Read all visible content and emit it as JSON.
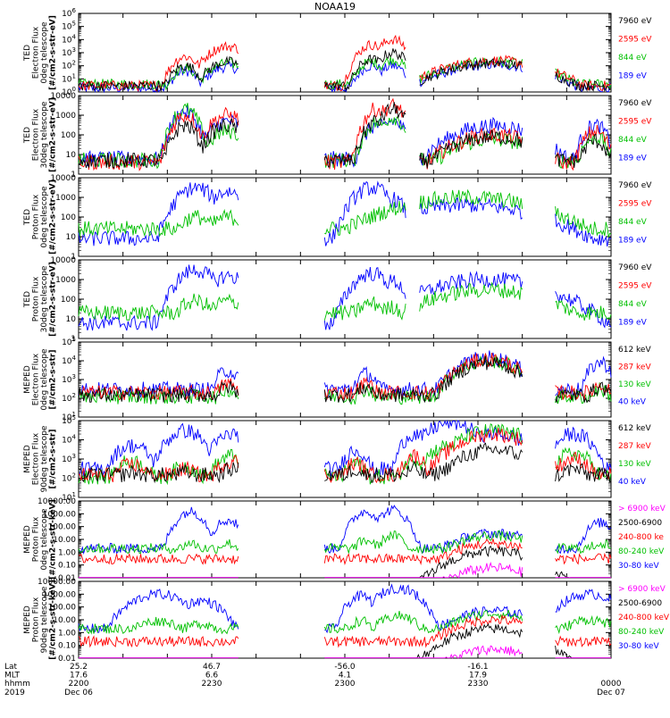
{
  "chart_data": [
    {
      "type": "line",
      "title": "NOAA19",
      "ylabel": [
        "TED",
        "Electron Flux",
        "0deg telescope",
        "[#/cm2-s-str-eV]"
      ],
      "yscale": "log",
      "ylim": [
        1,
        1000000
      ],
      "yticks": [
        "10^0",
        "10^1",
        "10^2",
        "10^3",
        "10^4",
        "10^5",
        "10^6"
      ],
      "legend": [
        {
          "label": "7960 eV",
          "color": "#000000"
        },
        {
          "label": "2595 eV",
          "color": "#ff0000"
        },
        {
          "label": "844 eV",
          "color": "#00c000"
        },
        {
          "label": "189 eV",
          "color": "#0000ff"
        }
      ],
      "peaks": [
        {
          "x": 0.2,
          "w": 0.02,
          "v": [
            100,
            500,
            60,
            40
          ]
        },
        {
          "x": 0.28,
          "w": 0.03,
          "v": [
            200,
            3000,
            150,
            80
          ]
        },
        {
          "x": 0.55,
          "w": 0.02,
          "v": [
            300,
            4000,
            200,
            100
          ]
        },
        {
          "x": 0.59,
          "w": 0.02,
          "v": [
            1000,
            10000,
            300,
            100
          ]
        },
        {
          "x": 0.78,
          "w": 0.08,
          "v": [
            150,
            250,
            200,
            120
          ]
        }
      ],
      "base": [
        3,
        3,
        4,
        2
      ]
    },
    {
      "type": "line",
      "ylabel": [
        "TED",
        "Electron Flux",
        "30deg telescope",
        "[#/cm2-s-str-eV]"
      ],
      "yscale": "log",
      "ylim": [
        1,
        10000
      ],
      "yticks": [
        "1",
        "10",
        "100",
        "1000",
        "10000"
      ],
      "legend": [
        {
          "label": "7960 eV",
          "color": "#000000"
        },
        {
          "label": "2595 eV",
          "color": "#ff0000"
        },
        {
          "label": "844 eV",
          "color": "#00c000"
        },
        {
          "label": "189 eV",
          "color": "#0000ff"
        }
      ],
      "peaks": [
        {
          "x": 0.2,
          "w": 0.02,
          "v": [
            300,
            1000,
            2000,
            1500
          ]
        },
        {
          "x": 0.28,
          "w": 0.03,
          "v": [
            300,
            1000,
            150,
            500
          ]
        },
        {
          "x": 0.56,
          "w": 0.02,
          "v": [
            500,
            2000,
            400,
            300
          ]
        },
        {
          "x": 0.59,
          "w": 0.02,
          "v": [
            2000,
            3000,
            800,
            500
          ]
        },
        {
          "x": 0.78,
          "w": 0.07,
          "v": [
            80,
            100,
            60,
            300
          ]
        },
        {
          "x": 0.97,
          "w": 0.02,
          "v": [
            50,
            150,
            80,
            300
          ]
        }
      ],
      "base": [
        5,
        4,
        5,
        6
      ]
    },
    {
      "type": "line",
      "ylabel": [
        "TED",
        "Proton Flux",
        "0deg telescope",
        "[#/cm2-s-str-eV]"
      ],
      "yscale": "log",
      "ylim": [
        1,
        10000
      ],
      "yticks": [
        "1",
        "10",
        "100",
        "1000",
        "10000"
      ],
      "legend": [
        {
          "label": "7960 eV",
          "color": "#000000"
        },
        {
          "label": "2595 eV",
          "color": "#ff0000"
        },
        {
          "label": "844 eV",
          "color": "#00c000"
        },
        {
          "label": "189 eV",
          "color": "#0000ff"
        }
      ],
      "peaks": [
        {
          "x": 0.22,
          "w": 0.03,
          "v": [
            0,
            0,
            100,
            3000
          ]
        },
        {
          "x": 0.28,
          "w": 0.03,
          "v": [
            0,
            0,
            100,
            2000
          ]
        },
        {
          "x": 0.55,
          "w": 0.03,
          "v": [
            0,
            0,
            80,
            3000
          ]
        },
        {
          "x": 0.59,
          "w": 0.02,
          "v": [
            0,
            0,
            60,
            800
          ]
        },
        {
          "x": 0.73,
          "w": 0.12,
          "v": [
            0,
            0,
            1000,
            400
          ]
        }
      ],
      "base": [
        0,
        0,
        25,
        8
      ]
    },
    {
      "type": "line",
      "ylabel": [
        "TED",
        "Proton Flux",
        "30deg telescope",
        "[#/cm2-s-str-eV]"
      ],
      "yscale": "log",
      "ylim": [
        1,
        10000
      ],
      "yticks": [
        "1",
        "10",
        "100",
        "1000",
        "10000"
      ],
      "legend": [
        {
          "label": "7960 eV",
          "color": "#000000"
        },
        {
          "label": "2595 eV",
          "color": "#ff0000"
        },
        {
          "label": "844 eV",
          "color": "#00c000"
        },
        {
          "label": "189 eV",
          "color": "#0000ff"
        }
      ],
      "peaks": [
        {
          "x": 0.22,
          "w": 0.03,
          "v": [
            0,
            0,
            80,
            3000
          ]
        },
        {
          "x": 0.28,
          "w": 0.03,
          "v": [
            0,
            0,
            80,
            1500
          ]
        },
        {
          "x": 0.55,
          "w": 0.03,
          "v": [
            0,
            0,
            60,
            2000
          ]
        },
        {
          "x": 0.59,
          "w": 0.02,
          "v": [
            0,
            0,
            40,
            800
          ]
        },
        {
          "x": 0.77,
          "w": 0.1,
          "v": [
            0,
            0,
            300,
            1000
          ]
        }
      ],
      "base": [
        0,
        0,
        20,
        6
      ]
    },
    {
      "type": "line",
      "ylabel": [
        "MEPED",
        "Electron Flux",
        "0deg telescope",
        "[#/cm2-s-str]"
      ],
      "yscale": "log",
      "ylim": [
        10,
        100000
      ],
      "yticks": [
        "10^1",
        "10^2",
        "10^3",
        "10^4",
        "10^5"
      ],
      "legend": [
        {
          "label": "612 keV",
          "color": "#000000"
        },
        {
          "label": "287 keV",
          "color": "#ff0000"
        },
        {
          "label": "130 keV",
          "color": "#00c000"
        },
        {
          "label": "40 keV",
          "color": "#0000ff"
        }
      ],
      "peaks": [
        {
          "x": 0.28,
          "w": 0.02,
          "v": [
            400,
            600,
            300,
            3000
          ]
        },
        {
          "x": 0.54,
          "w": 0.02,
          "v": [
            400,
            600,
            300,
            2000
          ]
        },
        {
          "x": 0.77,
          "w": 0.05,
          "v": [
            8000,
            12000,
            10000,
            15000
          ]
        },
        {
          "x": 0.98,
          "w": 0.02,
          "v": [
            400,
            500,
            300,
            8000
          ]
        }
      ],
      "base": [
        150,
        200,
        120,
        300
      ]
    },
    {
      "type": "line",
      "ylabel": [
        "MEPED",
        "Electron Flux",
        "90deg telescope",
        "[#/cm2-s-str]"
      ],
      "yscale": "log",
      "ylim": [
        10,
        100000
      ],
      "yticks": [
        "10^1",
        "10^2",
        "10^3",
        "10^4",
        "10^5"
      ],
      "legend": [
        {
          "label": "612 keV",
          "color": "#000000"
        },
        {
          "label": "287 keV",
          "color": "#ff0000"
        },
        {
          "label": "130 keV",
          "color": "#00c000"
        },
        {
          "label": "40 keV",
          "color": "#0000ff"
        }
      ],
      "peaks": [
        {
          "x": 0.1,
          "w": 0.03,
          "v": [
            200,
            500,
            800,
            5000
          ]
        },
        {
          "x": 0.2,
          "w": 0.03,
          "v": [
            200,
            300,
            400,
            30000
          ]
        },
        {
          "x": 0.29,
          "w": 0.03,
          "v": [
            300,
            800,
            1500,
            20000
          ]
        },
        {
          "x": 0.52,
          "w": 0.02,
          "v": [
            300,
            600,
            600,
            3000
          ]
        },
        {
          "x": 0.63,
          "w": 0.02,
          "v": [
            300,
            1500,
            1000,
            20000
          ]
        },
        {
          "x": 0.7,
          "w": 0.04,
          "v": [
            300,
            1000,
            5000,
            80000
          ]
        },
        {
          "x": 0.78,
          "w": 0.06,
          "v": [
            3000,
            20000,
            30000,
            20000
          ]
        },
        {
          "x": 0.93,
          "w": 0.03,
          "v": [
            300,
            1000,
            2000,
            20000
          ]
        }
      ],
      "base": [
        150,
        150,
        120,
        300
      ]
    },
    {
      "type": "line",
      "ylabel": [
        "MEPED",
        "Proton Flux",
        "0deg telescope",
        "[#/cm2-s-str-keV]"
      ],
      "yscale": "log",
      "ylim": [
        0.01,
        10000
      ],
      "yticks": [
        "0.01",
        "0.10",
        "1.00",
        "10.00",
        "100.00",
        "1000.00",
        "10000.00"
      ],
      "legend": [
        {
          "label": "> 6900 keV",
          "color": "#ff00ff"
        },
        {
          "label": "2500-6900",
          "color": "#000000"
        },
        {
          "label": "240-800 ke",
          "color": "#ff0000"
        },
        {
          "label": "80-240 keV",
          "color": "#00c000"
        },
        {
          "label": "30-80 keV",
          "color": "#0000ff"
        }
      ],
      "peaks": [
        {
          "x": 0.21,
          "w": 0.02,
          "v": [
            0,
            0,
            0,
            5,
            1500
          ]
        },
        {
          "x": 0.28,
          "w": 0.02,
          "v": [
            0,
            0,
            0,
            5,
            300
          ]
        },
        {
          "x": 0.54,
          "w": 0.02,
          "v": [
            0,
            0,
            0,
            8,
            1500
          ]
        },
        {
          "x": 0.59,
          "w": 0.02,
          "v": [
            0,
            0,
            0,
            20,
            2000
          ]
        },
        {
          "x": 0.78,
          "w": 0.06,
          "v": [
            0.06,
            1.2,
            5,
            20,
            30
          ]
        },
        {
          "x": 0.98,
          "w": 0.02,
          "v": [
            0,
            0,
            0,
            5,
            200
          ]
        }
      ],
      "base": [
        0,
        0,
        0.3,
        2,
        2
      ]
    },
    {
      "type": "line",
      "ylabel": [
        "MEPED",
        "Proton Flux",
        "90deg telescope",
        "[#/cm2-s-str-keV]"
      ],
      "yscale": "log",
      "ylim": [
        0.01,
        10000
      ],
      "yticks": [
        "0.01",
        "0.10",
        "1.00",
        "10.00",
        "100.00",
        "1000.00",
        "10000.00"
      ],
      "legend": [
        {
          "label": "> 6900 keV",
          "color": "#ff00ff"
        },
        {
          "label": "2500-6900",
          "color": "#000000"
        },
        {
          "label": "240-800 keV",
          "color": "#ff0000"
        },
        {
          "label": "80-240 keV",
          "color": "#00c000"
        },
        {
          "label": "30-80 keV",
          "color": "#0000ff"
        }
      ],
      "peaks": [
        {
          "x": 0.15,
          "w": 0.04,
          "v": [
            0,
            0,
            0,
            8,
            1000
          ]
        },
        {
          "x": 0.23,
          "w": 0.03,
          "v": [
            0,
            0,
            0,
            5,
            300
          ]
        },
        {
          "x": 0.53,
          "w": 0.02,
          "v": [
            0,
            0,
            0,
            8,
            700
          ]
        },
        {
          "x": 0.6,
          "w": 0.03,
          "v": [
            0,
            0,
            0,
            20,
            3000
          ]
        },
        {
          "x": 0.78,
          "w": 0.06,
          "v": [
            0.05,
            2,
            10,
            30,
            50
          ]
        },
        {
          "x": 0.96,
          "w": 0.04,
          "v": [
            0,
            0,
            0,
            10,
            1000
          ]
        }
      ],
      "base": [
        0,
        0,
        0.2,
        2,
        2
      ]
    }
  ],
  "footer": {
    "row_labels": [
      "Lat",
      "MLT",
      "hhmm",
      "2019"
    ],
    "ticks": [
      {
        "lines": [
          "25.2",
          "17.6",
          "2200",
          "Dec 06"
        ]
      },
      {
        "lines": [
          "46.7",
          "6.6",
          "2230",
          ""
        ]
      },
      {
        "lines": [
          "-56.0",
          "4.1",
          "2300",
          ""
        ]
      },
      {
        "lines": [
          "-16.1",
          "17.9",
          "2330",
          ""
        ]
      },
      {
        "lines": [
          "",
          "",
          "0000",
          "Dec 07"
        ]
      }
    ]
  }
}
